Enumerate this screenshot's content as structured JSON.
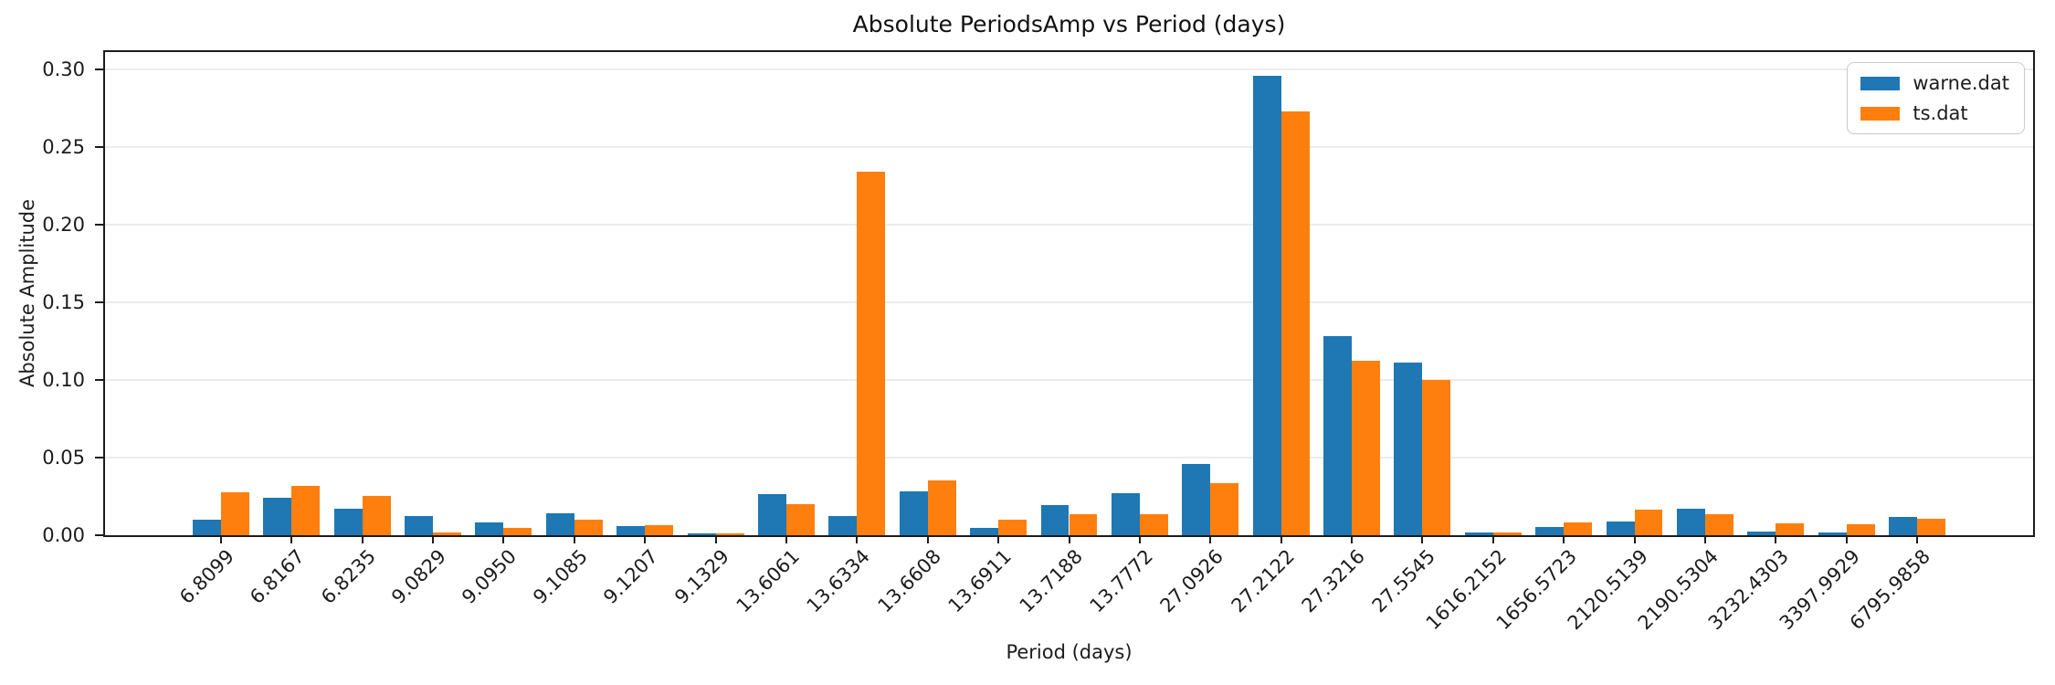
{
  "figure": {
    "title": "Absolute PeriodsAmp vs Period (days)",
    "xlabel": "Period (days)",
    "ylabel": "Absolute Amplitude"
  },
  "legend": {
    "items": [
      {
        "label": "warne.dat",
        "color": "#1f77b4"
      },
      {
        "label": "ts.dat",
        "color": "#ff7f0e"
      }
    ]
  },
  "chart_data": {
    "type": "bar",
    "title": "Absolute PeriodsAmp vs Period (days)",
    "xlabel": "Period (days)",
    "ylabel": "Absolute Amplitude",
    "categories": [
      "6.8099",
      "6.8167",
      "6.8235",
      "9.0829",
      "9.0950",
      "9.1085",
      "9.1207",
      "9.1329",
      "13.6061",
      "13.6334",
      "13.6608",
      "13.6911",
      "13.7188",
      "13.7772",
      "27.0926",
      "27.2122",
      "27.3216",
      "27.5545",
      "1616.2152",
      "1656.5723",
      "2120.5139",
      "2190.5304",
      "3232.4303",
      "3397.9929",
      "6795.9858"
    ],
    "series": [
      {
        "name": "warne.dat",
        "color": "#1f77b4",
        "values": [
          0.01,
          0.024,
          0.017,
          0.0125,
          0.008,
          0.014,
          0.006,
          0.001,
          0.0265,
          0.0125,
          0.028,
          0.005,
          0.0195,
          0.027,
          0.046,
          0.296,
          0.128,
          0.111,
          0.002,
          0.0055,
          0.009,
          0.017,
          0.0025,
          0.002,
          0.0115
        ]
      },
      {
        "name": "ts.dat",
        "color": "#ff7f0e",
        "values": [
          0.0275,
          0.0315,
          0.025,
          0.002,
          0.005,
          0.01,
          0.0065,
          0.001,
          0.02,
          0.234,
          0.035,
          0.01,
          0.0135,
          0.0135,
          0.0335,
          0.273,
          0.1125,
          0.1,
          0.002,
          0.0085,
          0.0165,
          0.0135,
          0.0078,
          0.0072,
          0.0107
        ]
      }
    ],
    "yticks": [
      0.0,
      0.05,
      0.1,
      0.15,
      0.2,
      0.25,
      0.3
    ],
    "ylim": [
      0,
      0.311
    ],
    "bar_width": 0.4,
    "grid": "horizontal",
    "legend_position": "upper right",
    "x_tick_rotation": 45
  }
}
